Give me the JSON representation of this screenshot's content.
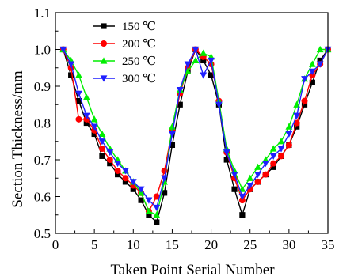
{
  "chart_data": {
    "type": "line",
    "title": "",
    "xlabel": "Taken Point Serial Number",
    "ylabel": "Section Thickness/mm",
    "xlim": [
      0,
      35
    ],
    "ylim": [
      0.5,
      1.1
    ],
    "xticks": [
      "0",
      "5",
      "10",
      "15",
      "20",
      "25",
      "30",
      "35"
    ],
    "yticks": [
      "0.5",
      "0.6",
      "0.7",
      "0.8",
      "0.9",
      "1.0",
      "1.1"
    ],
    "grid": false,
    "legend_position": "top-left",
    "x": [
      1,
      2,
      3,
      4,
      5,
      6,
      7,
      8,
      9,
      10,
      11,
      12,
      13,
      14,
      15,
      16,
      17,
      18,
      19,
      20,
      21,
      22,
      23,
      24,
      25,
      26,
      27,
      28,
      29,
      30,
      31,
      32,
      33,
      34,
      35
    ],
    "series": [
      {
        "name": "150 ℃",
        "color": "#000000",
        "marker": "square",
        "values": [
          1.0,
          0.93,
          0.86,
          0.8,
          0.77,
          0.71,
          0.69,
          0.66,
          0.64,
          0.62,
          0.59,
          0.55,
          0.53,
          0.61,
          0.74,
          0.85,
          0.94,
          1.0,
          0.97,
          0.93,
          0.85,
          0.7,
          0.62,
          0.55,
          0.62,
          0.64,
          0.66,
          0.68,
          0.71,
          0.74,
          0.79,
          0.85,
          0.91,
          0.97,
          1.0
        ]
      },
      {
        "name": "200 ℃",
        "color": "#ff0000",
        "marker": "circle",
        "values": [
          1.0,
          0.95,
          0.81,
          0.81,
          0.78,
          0.73,
          0.7,
          0.67,
          0.65,
          0.63,
          0.61,
          0.56,
          0.6,
          0.67,
          0.78,
          0.88,
          0.95,
          1.0,
          0.98,
          0.96,
          0.86,
          0.72,
          0.65,
          0.59,
          0.62,
          0.64,
          0.66,
          0.69,
          0.71,
          0.74,
          0.8,
          0.86,
          0.93,
          0.96,
          1.0
        ]
      },
      {
        "name": "250 ℃",
        "color": "#00ee00",
        "marker": "triangle-up",
        "values": [
          1.0,
          0.97,
          0.93,
          0.87,
          0.81,
          0.77,
          0.73,
          0.7,
          0.67,
          0.64,
          0.61,
          0.56,
          0.55,
          0.64,
          0.79,
          0.89,
          0.94,
          0.97,
          0.99,
          0.98,
          0.86,
          0.73,
          0.67,
          0.62,
          0.65,
          0.68,
          0.7,
          0.73,
          0.75,
          0.79,
          0.85,
          0.92,
          0.96,
          1.0,
          1.0
        ]
      },
      {
        "name": "300 ℃",
        "color": "#1f1fff",
        "marker": "triangle-down",
        "values": [
          1.0,
          0.96,
          0.88,
          0.82,
          0.79,
          0.75,
          0.72,
          0.69,
          0.67,
          0.64,
          0.62,
          0.59,
          0.57,
          0.65,
          0.77,
          0.89,
          0.96,
          1.0,
          0.93,
          0.97,
          0.85,
          0.72,
          0.66,
          0.6,
          0.63,
          0.66,
          0.69,
          0.71,
          0.73,
          0.77,
          0.82,
          0.92,
          0.94,
          0.96,
          1.0
        ]
      }
    ]
  }
}
